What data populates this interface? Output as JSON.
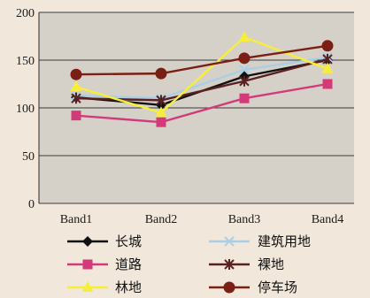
{
  "chart_data": {
    "type": "line",
    "title": "",
    "xlabel": "",
    "ylabel": "",
    "categories": [
      "Band1",
      "Band2",
      "Band3",
      "Band4"
    ],
    "ylim": [
      0,
      200
    ],
    "yticks": [
      0,
      50,
      100,
      150,
      200
    ],
    "grid": "horizontal",
    "legend_position": "bottom",
    "series": [
      {
        "name": "长城",
        "values": [
          111,
          103,
          133,
          150
        ],
        "color": "#111111",
        "marker": "diamond"
      },
      {
        "name": "建筑用地",
        "values": [
          113,
          110,
          140,
          153
        ],
        "color": "#a8cfe6",
        "marker": "x"
      },
      {
        "name": "道路",
        "values": [
          92,
          85,
          110,
          125
        ],
        "color": "#d23a7a",
        "marker": "square"
      },
      {
        "name": "裸地",
        "values": [
          110,
          108,
          128,
          151
        ],
        "color": "#5a2020",
        "marker": "asterisk"
      },
      {
        "name": "林地",
        "values": [
          122,
          95,
          174,
          141
        ],
        "color": "#f6ee3a",
        "marker": "triangle"
      },
      {
        "name": "停车场",
        "values": [
          135,
          136,
          152,
          165
        ],
        "color": "#7a1f14",
        "marker": "circle"
      }
    ]
  }
}
